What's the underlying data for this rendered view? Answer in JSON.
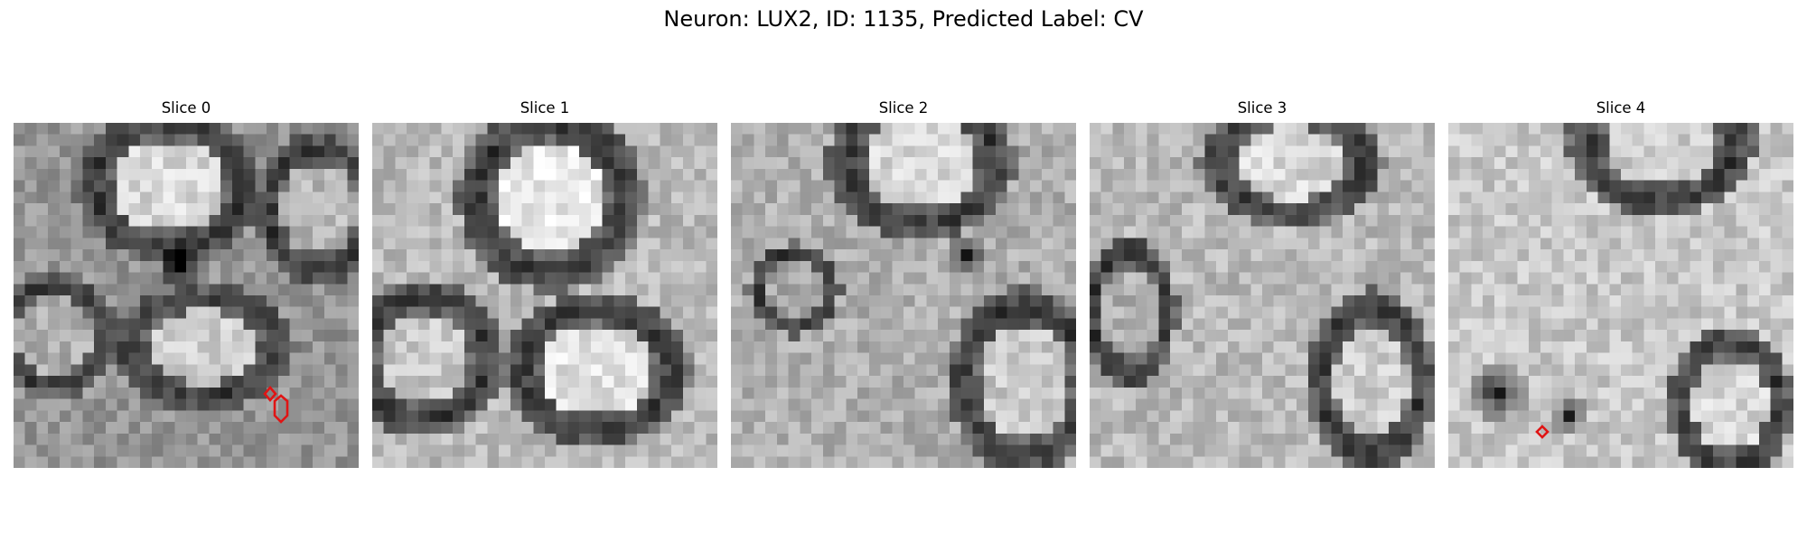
{
  "figure_title": "Neuron: LUX2, ID: 1135, Predicted Label: CV",
  "panels": [
    {
      "title": "Slice 0"
    },
    {
      "title": "Slice 1"
    },
    {
      "title": "Slice 2"
    },
    {
      "title": "Slice 3"
    },
    {
      "title": "Slice 4"
    }
  ],
  "marker_color": "#e01414",
  "colormap": "gray"
}
